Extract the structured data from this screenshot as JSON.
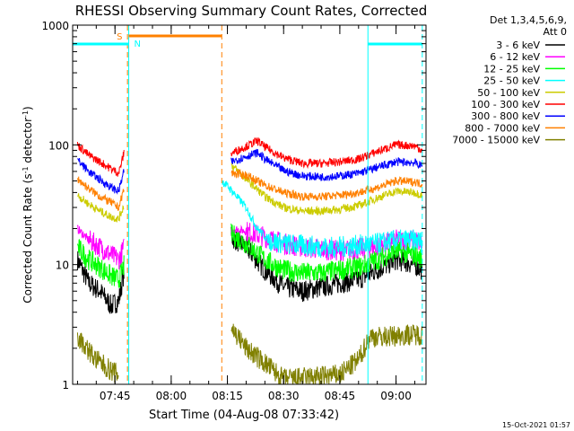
{
  "title": "RHESSI Observing Summary Count Rates, Corrected",
  "xlabel": "Start Time (04-Aug-08 07:33:42)",
  "ylabel_main": "Corrected Count Rate (s",
  "ylabel_sup1": "-1",
  "ylabel_mid": " detector",
  "ylabel_sup2": "-1",
  "ylabel_end": ")",
  "detector_line1": "Det 1,3,4,5,6,9,",
  "detector_line2": "Att 0",
  "footer_date": "15-Oct-2021 01:57",
  "flag_s": "S",
  "flag_n": "N",
  "colors": {
    "cyan": "#00ffff",
    "orange": "#ff8000"
  },
  "chart_data": {
    "type": "line",
    "xlim": [
      "07:33:42",
      "09:08:00"
    ],
    "ylim": [
      1,
      1000
    ],
    "yscale": "log",
    "x_ticks": [
      "07:45",
      "08:00",
      "08:15",
      "08:30",
      "08:45",
      "09:00"
    ],
    "y_ticks": [
      "1",
      "10",
      "100",
      "1000"
    ],
    "legend_position": "right",
    "markers": {
      "orange_dashed_lines": [
        "07:48:20",
        "08:13:30"
      ],
      "cyan_solid_lines": [
        "07:48:40",
        "08:52:30"
      ],
      "cyan_dashed_lines": [
        "09:07:00"
      ],
      "orange_bar": {
        "from": "07:48:40",
        "to": "08:13:30",
        "label": "S"
      },
      "cyan_bars": [
        {
          "from": "07:33:42",
          "to": "07:48:40",
          "label": "N"
        },
        {
          "from": "08:52:30",
          "to": "09:07:00",
          "label": ""
        }
      ]
    },
    "series": [
      {
        "name": "3 - 6 keV",
        "color": "#000000",
        "x": [
          "07:35",
          "07:38",
          "07:41",
          "07:44",
          "07:46",
          "07:47:30",
          "08:16",
          "08:20",
          "08:25",
          "08:30",
          "08:35",
          "08:40",
          "08:45",
          "08:50",
          "08:55",
          "09:00",
          "09:05",
          "09:07"
        ],
        "y": [
          11,
          7,
          6,
          4.5,
          5,
          9,
          17,
          14,
          9,
          6.5,
          6,
          6.5,
          7,
          7.5,
          9,
          11,
          10,
          9
        ]
      },
      {
        "name": "6 - 12 keV",
        "color": "#ff00ff",
        "x": [
          "07:35",
          "07:38",
          "07:41",
          "07:44",
          "07:46",
          "07:47:30",
          "08:16",
          "08:20",
          "08:25",
          "08:30",
          "08:35",
          "08:40",
          "08:45",
          "08:50",
          "08:55",
          "09:00",
          "09:05",
          "09:07"
        ],
        "y": [
          20,
          16,
          14,
          12,
          11,
          14,
          20,
          19,
          17,
          15,
          14,
          13.5,
          13,
          13.5,
          14,
          16,
          16,
          15
        ]
      },
      {
        "name": "12 - 25 keV",
        "color": "#00ff00",
        "x": [
          "07:35",
          "07:38",
          "07:41",
          "07:44",
          "07:46",
          "07:47:30",
          "08:16",
          "08:20",
          "08:25",
          "08:30",
          "08:35",
          "08:40",
          "08:45",
          "08:50",
          "08:55",
          "09:00",
          "09:05",
          "09:07"
        ],
        "y": [
          14,
          11,
          9.5,
          8,
          7.5,
          10,
          18,
          15,
          11,
          9,
          8.5,
          8.5,
          9,
          9.5,
          11,
          13,
          12,
          11
        ]
      },
      {
        "name": "25 - 50 keV",
        "color": "#00ffff",
        "x": [
          "08:13:30",
          "08:16",
          "08:20",
          "08:23",
          "08:26",
          "08:30",
          "08:35",
          "08:40",
          "08:45",
          "08:50",
          "08:55",
          "09:00",
          "09:05",
          "09:07"
        ],
        "y": [
          50,
          42,
          30,
          20,
          16,
          15,
          14.5,
          14,
          14,
          14.5,
          15,
          16,
          16,
          15.5
        ]
      },
      {
        "name": "50 - 100 keV",
        "color": "#cccc00",
        "x": [
          "07:35",
          "07:38",
          "07:41",
          "07:44",
          "07:46",
          "07:47:30",
          "08:16",
          "08:20",
          "08:25",
          "08:30",
          "08:35",
          "08:40",
          "08:45",
          "08:50",
          "08:55",
          "09:00",
          "09:05",
          "09:07"
        ],
        "y": [
          38,
          32,
          28,
          25,
          24,
          32,
          68,
          52,
          37,
          30,
          28,
          28,
          29,
          31,
          36,
          41,
          40,
          38
        ]
      },
      {
        "name": "100 - 300 keV",
        "color": "#ff0000",
        "x": [
          "07:35",
          "07:38",
          "07:41",
          "07:44",
          "07:46",
          "07:47:30",
          "08:16",
          "08:20",
          "08:23",
          "08:25",
          "08:30",
          "08:35",
          "08:40",
          "08:45",
          "08:50",
          "08:55",
          "09:00",
          "09:05",
          "09:07"
        ],
        "y": [
          100,
          82,
          72,
          63,
          58,
          88,
          85,
          97,
          108,
          96,
          78,
          70,
          70,
          72,
          76,
          88,
          100,
          98,
          90
        ]
      },
      {
        "name": "300 - 800 keV",
        "color": "#0000ff",
        "x": [
          "07:35",
          "07:38",
          "07:41",
          "07:44",
          "07:46",
          "07:47:30",
          "08:16",
          "08:20",
          "08:23",
          "08:25",
          "08:30",
          "08:35",
          "08:40",
          "08:45",
          "08:50",
          "08:55",
          "09:00",
          "09:05",
          "09:07"
        ],
        "y": [
          75,
          60,
          51,
          44,
          41,
          62,
          72,
          80,
          86,
          76,
          61,
          55,
          54,
          55,
          58,
          65,
          72,
          71,
          66
        ]
      },
      {
        "name": "800 - 7000 keV",
        "color": "#ff8000",
        "x": [
          "07:35",
          "07:38",
          "07:41",
          "07:44",
          "07:46",
          "07:47:30",
          "08:16",
          "08:20",
          "08:25",
          "08:30",
          "08:35",
          "08:40",
          "08:45",
          "08:50",
          "08:55",
          "09:00",
          "09:05",
          "09:07"
        ],
        "y": [
          52,
          43,
          37,
          33,
          30,
          44,
          58,
          56,
          46,
          40,
          37,
          37,
          38,
          40,
          44,
          50,
          49,
          47
        ]
      },
      {
        "name": "7000 - 15000 keV",
        "color": "#808000",
        "x": [
          "07:35",
          "07:40",
          "07:44",
          "07:46",
          "08:16",
          "08:20",
          "08:25",
          "08:30",
          "08:45",
          "08:50",
          "08:53",
          "08:58",
          "09:03",
          "09:07"
        ],
        "y": [
          2.5,
          1.6,
          1.3,
          1.2,
          3,
          2,
          1.5,
          1.1,
          1.2,
          1.6,
          2.5,
          2.5,
          2.6,
          2.6
        ]
      }
    ]
  }
}
